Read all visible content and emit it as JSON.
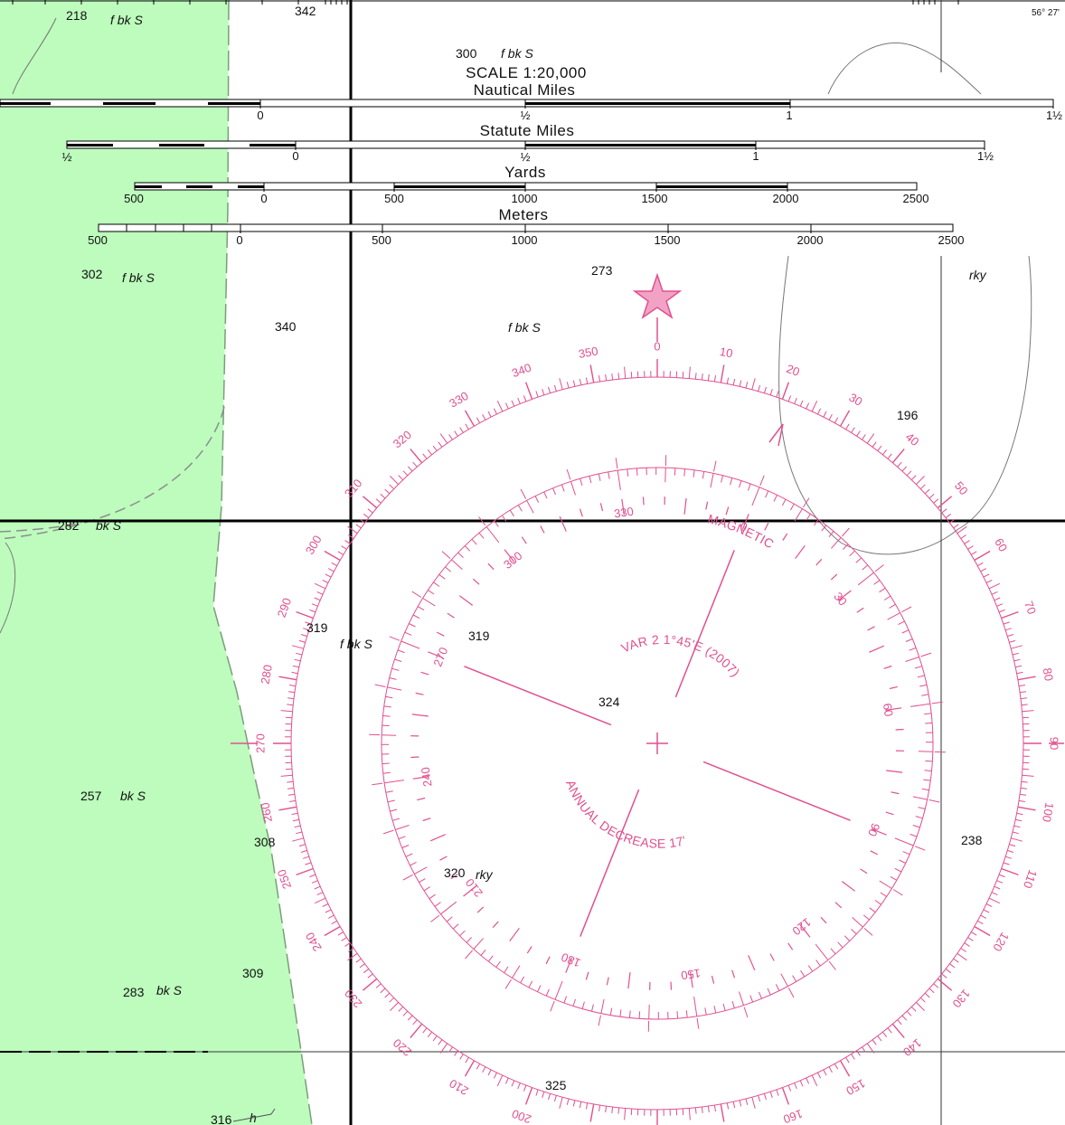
{
  "chart_corner_label": "56° 27'",
  "scale": {
    "title": "SCALE  1:20,000",
    "nautical": {
      "label": "Nautical Miles",
      "ticks": [
        "0",
        "½",
        "1",
        "1½"
      ]
    },
    "statute": {
      "label": "Statute  Miles",
      "ticks": [
        "½",
        "0",
        "½",
        "1",
        "1½"
      ]
    },
    "yards": {
      "label": "Yards",
      "ticks": [
        "500",
        "0",
        "500",
        "1000",
        "1500",
        "2000",
        "2500"
      ]
    },
    "meters": {
      "label": "Meters",
      "ticks": [
        "500",
        "0",
        "500",
        "1000",
        "1500",
        "2000",
        "2500"
      ]
    }
  },
  "soundings": [
    "218",
    "342",
    "300",
    "302",
    "273",
    "340",
    "196",
    "282",
    "319",
    "319",
    "324",
    "257",
    "308",
    "238",
    "320",
    "309",
    "283",
    "325",
    "316"
  ],
  "bottom_notes": [
    "f bk S",
    "f bk S",
    "f bk S",
    "f bk S",
    "rky",
    "bk S",
    "f bk S",
    "bk S",
    "rky",
    "bk S",
    "h"
  ],
  "rose": {
    "variation_text": "VAR 2 1°45'E (2007)",
    "annual_change_text": "ANNUAL DECREASE 17'",
    "magnetic_label": "MAGNETIC",
    "color": "#e0508f"
  },
  "colors": {
    "land_shoal": "#bdfcbd",
    "rose": "#e0508f",
    "grid": "#000000"
  }
}
